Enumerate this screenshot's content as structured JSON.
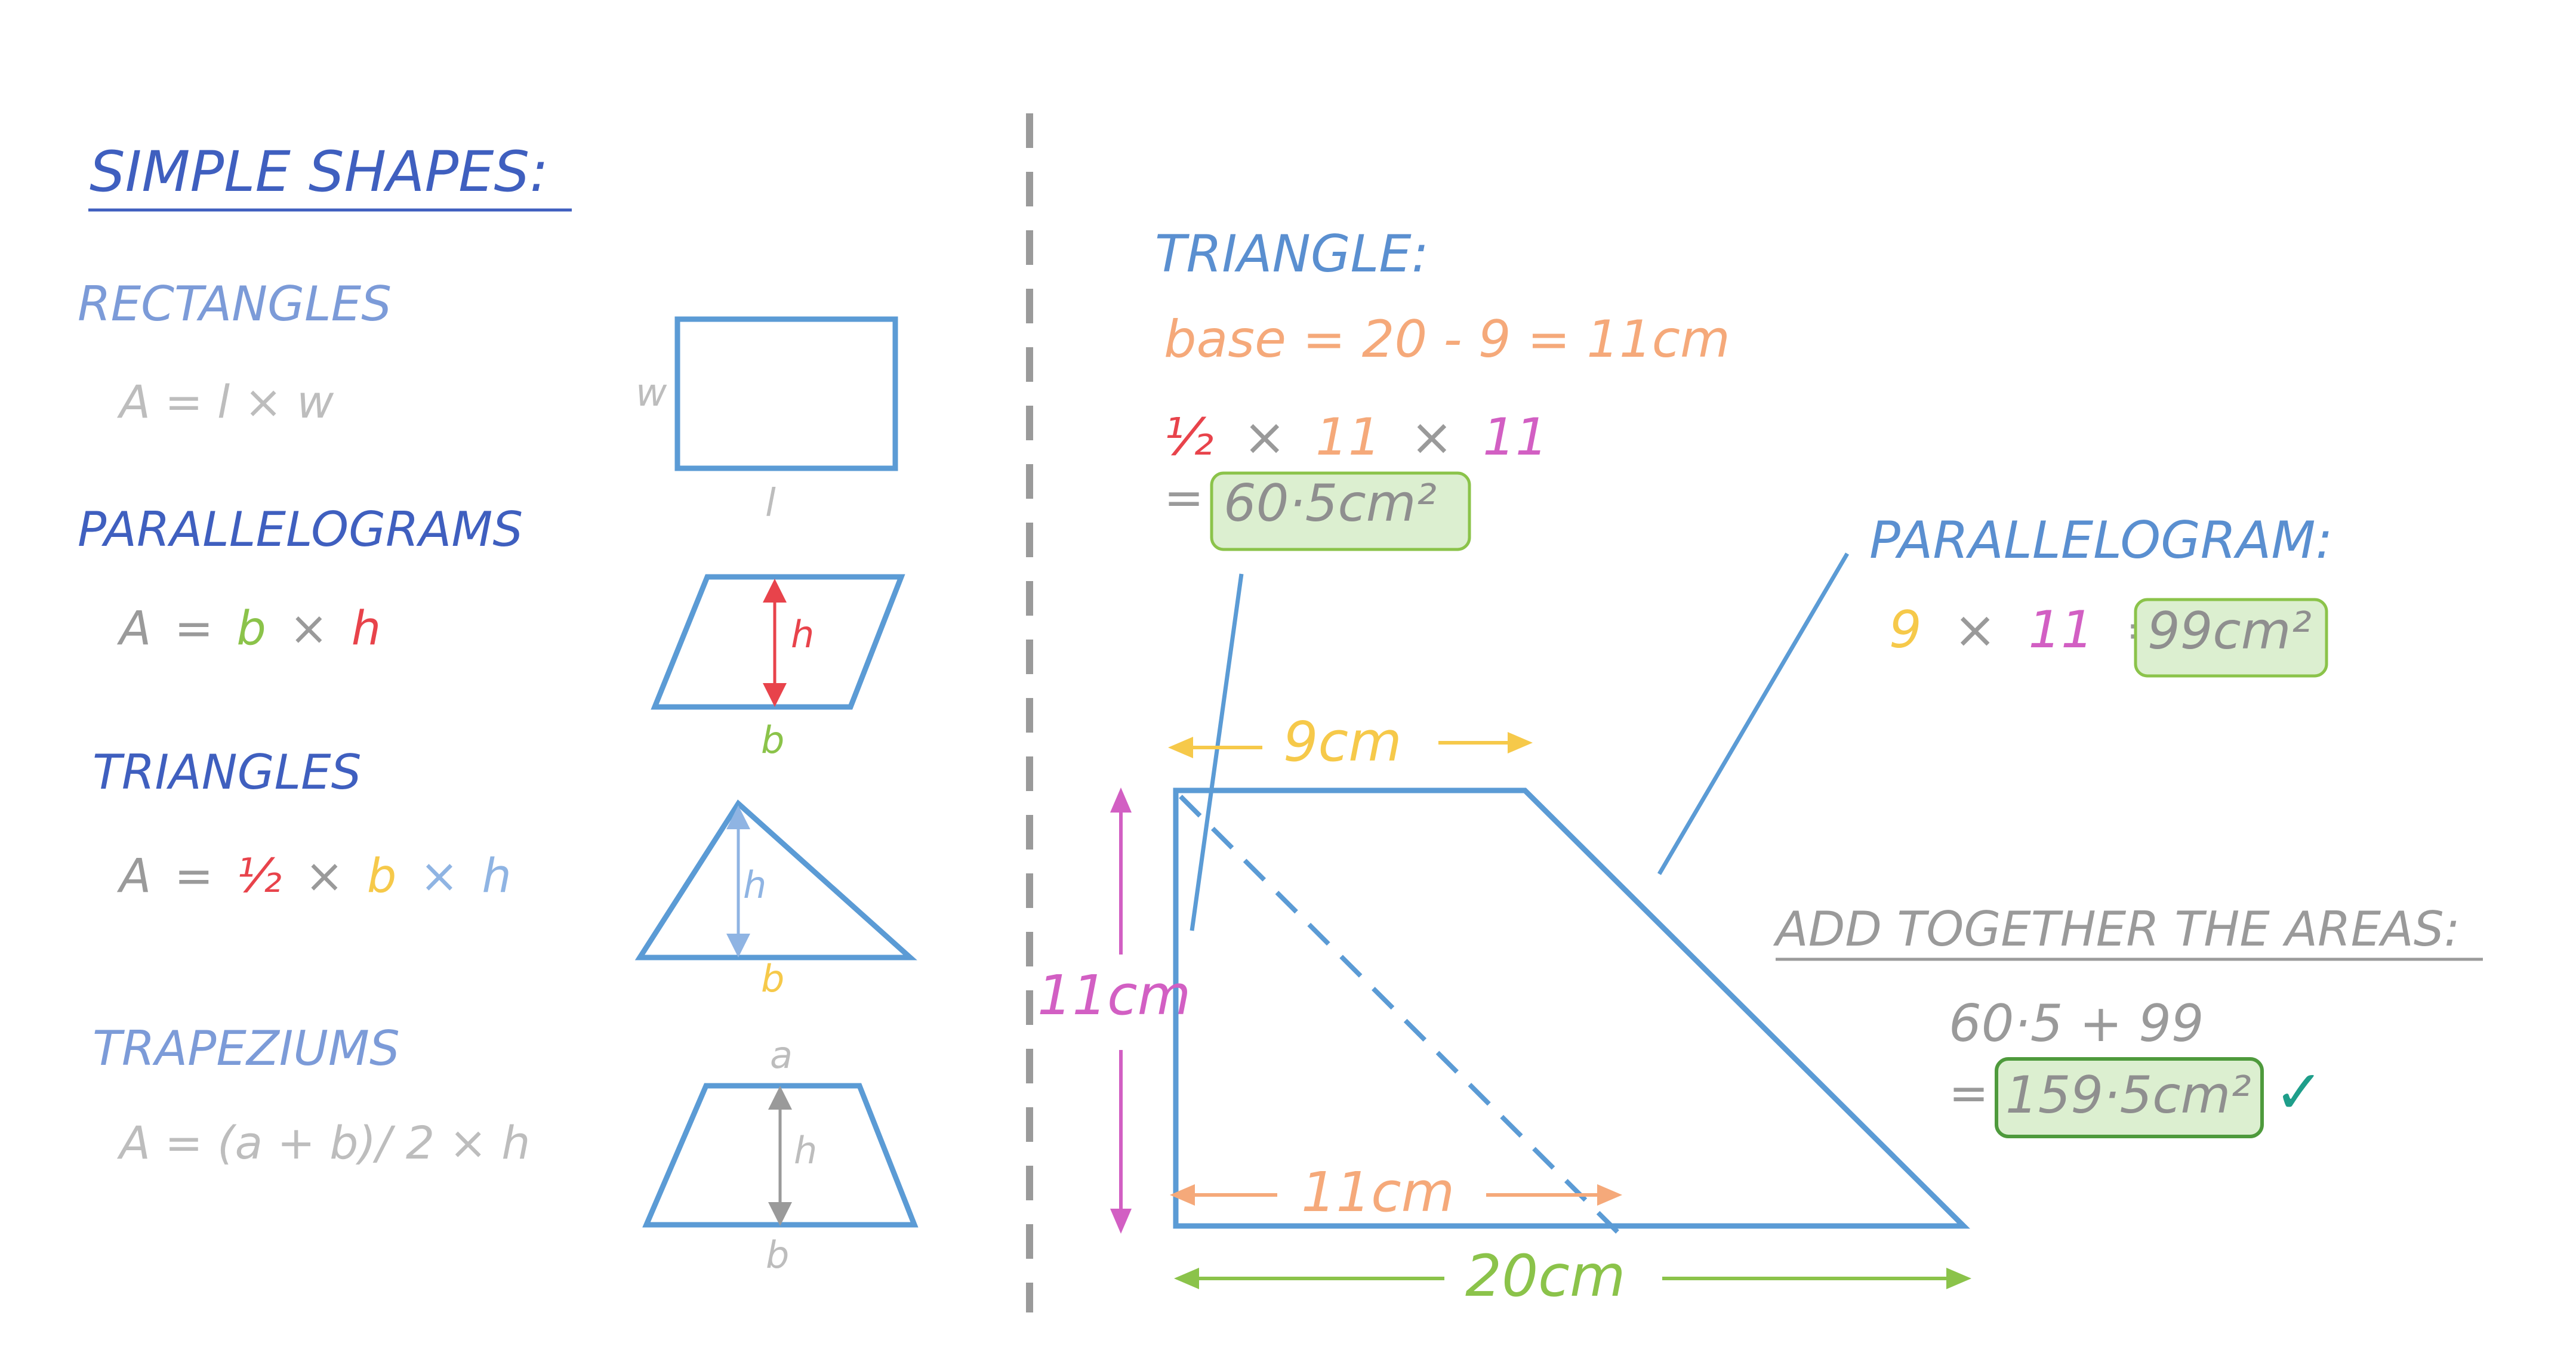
{
  "colors": {
    "blue_dark": "#3F5FBF",
    "blue_mid": "#5A8FD0",
    "blue_light": "#7C9BD8",
    "shape_blue": "#5B9BD5",
    "gray": "#9A9A9A",
    "gray_light": "#BDBDBD",
    "red": "#E8434B",
    "green": "#8BC34A",
    "yellow": "#F6C94A",
    "orange": "#F5A97A",
    "magenta": "#D25FC3",
    "teal_check": "#1E9E8A",
    "box_fill": "#DCEFD0",
    "box_stroke": "#8BC34A"
  },
  "left": {
    "title": "SIMPLE   SHAPES:",
    "rectangles": {
      "heading": "RECTANGLES",
      "formula": "A = l × w",
      "label_w": "w",
      "label_l": "l"
    },
    "parallelograms": {
      "heading": "PARALLELOGRAMS",
      "formula_a": "A",
      "formula_eq": "=",
      "formula_b": "b",
      "formula_x": "×",
      "formula_h": "h",
      "label_h": "h",
      "label_b": "b"
    },
    "triangles": {
      "heading": "TRIANGLES",
      "formula_a": "A",
      "formula_eq": "=",
      "formula_half": "½",
      "formula_x1": "×",
      "formula_b": "b",
      "formula_x2": "×",
      "formula_h": "h",
      "label_h": "h",
      "label_b": "b"
    },
    "trapeziums": {
      "heading": "TRAPEZIUMS",
      "formula": "A = (a + b)/ 2 × h",
      "label_a": "a",
      "label_h": "h",
      "label_b": "b"
    }
  },
  "right": {
    "triangle": {
      "heading": "TRIANGLE:",
      "base_line": "base = 20 - 9 = 11cm",
      "calc_half": "½",
      "calc_x1": "×",
      "calc_11a": "11",
      "calc_x2": "×",
      "calc_11b": "11",
      "eq": "=",
      "result": "60·5cm²"
    },
    "parallelogram": {
      "heading": "PARALLELOGRAM:",
      "calc_9": "9",
      "calc_x": "×",
      "calc_11": "11",
      "eq": "=",
      "result": "99cm²"
    },
    "sum": {
      "heading": "ADD TOGETHER THE AREAS:",
      "line1": "60·5 + 99",
      "eq": "=",
      "result": "159·5cm²",
      "check": "✓"
    },
    "dimensions": {
      "top": "9cm",
      "left": "11cm",
      "bottom_inner": "11cm",
      "bottom_total": "20cm"
    }
  }
}
